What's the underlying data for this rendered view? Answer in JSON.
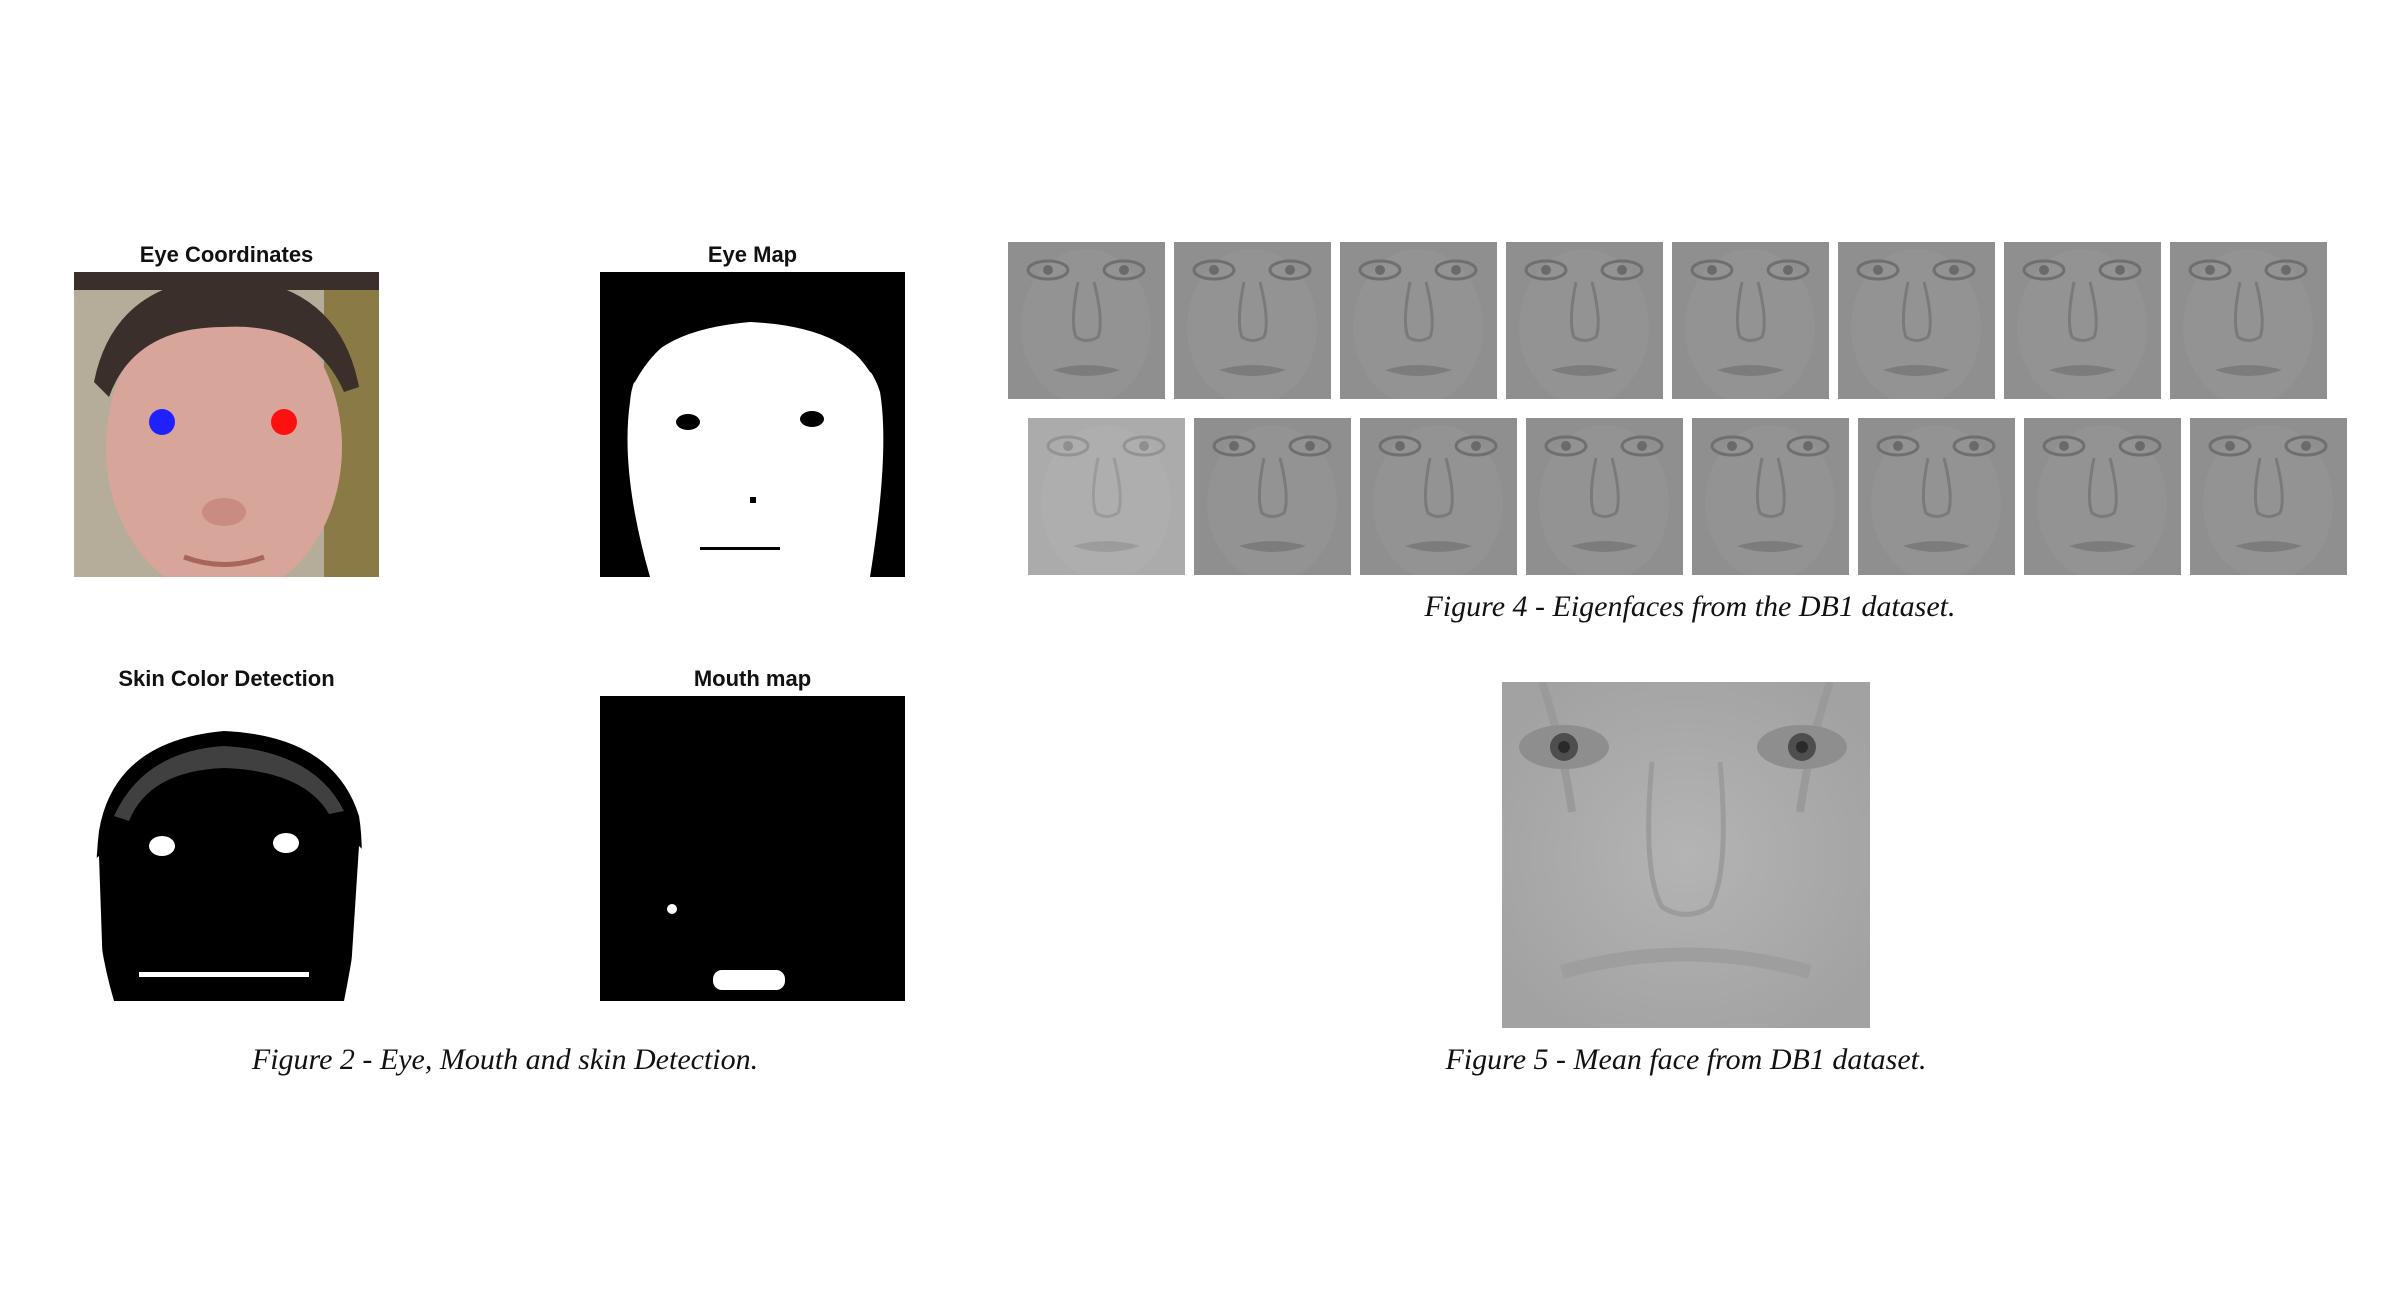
{
  "figure2": {
    "panels": {
      "eye_coordinates": "Eye Coordinates",
      "eye_map": "Eye Map",
      "skin_color_detection": "Skin Color Detection",
      "mouth_map": "Mouth map"
    },
    "caption": "Figure 2 - Eye, Mouth and skin Detection.",
    "marker_colors": {
      "left_eye": "#2020ff",
      "right_eye": "#ff1010"
    }
  },
  "figure4": {
    "caption": "Figure 4 - Eigenfaces from the DB1 dataset.",
    "rows": 2,
    "faces_per_row": 8
  },
  "figure5": {
    "caption": "Figure 5 - Mean face from DB1 dataset."
  }
}
